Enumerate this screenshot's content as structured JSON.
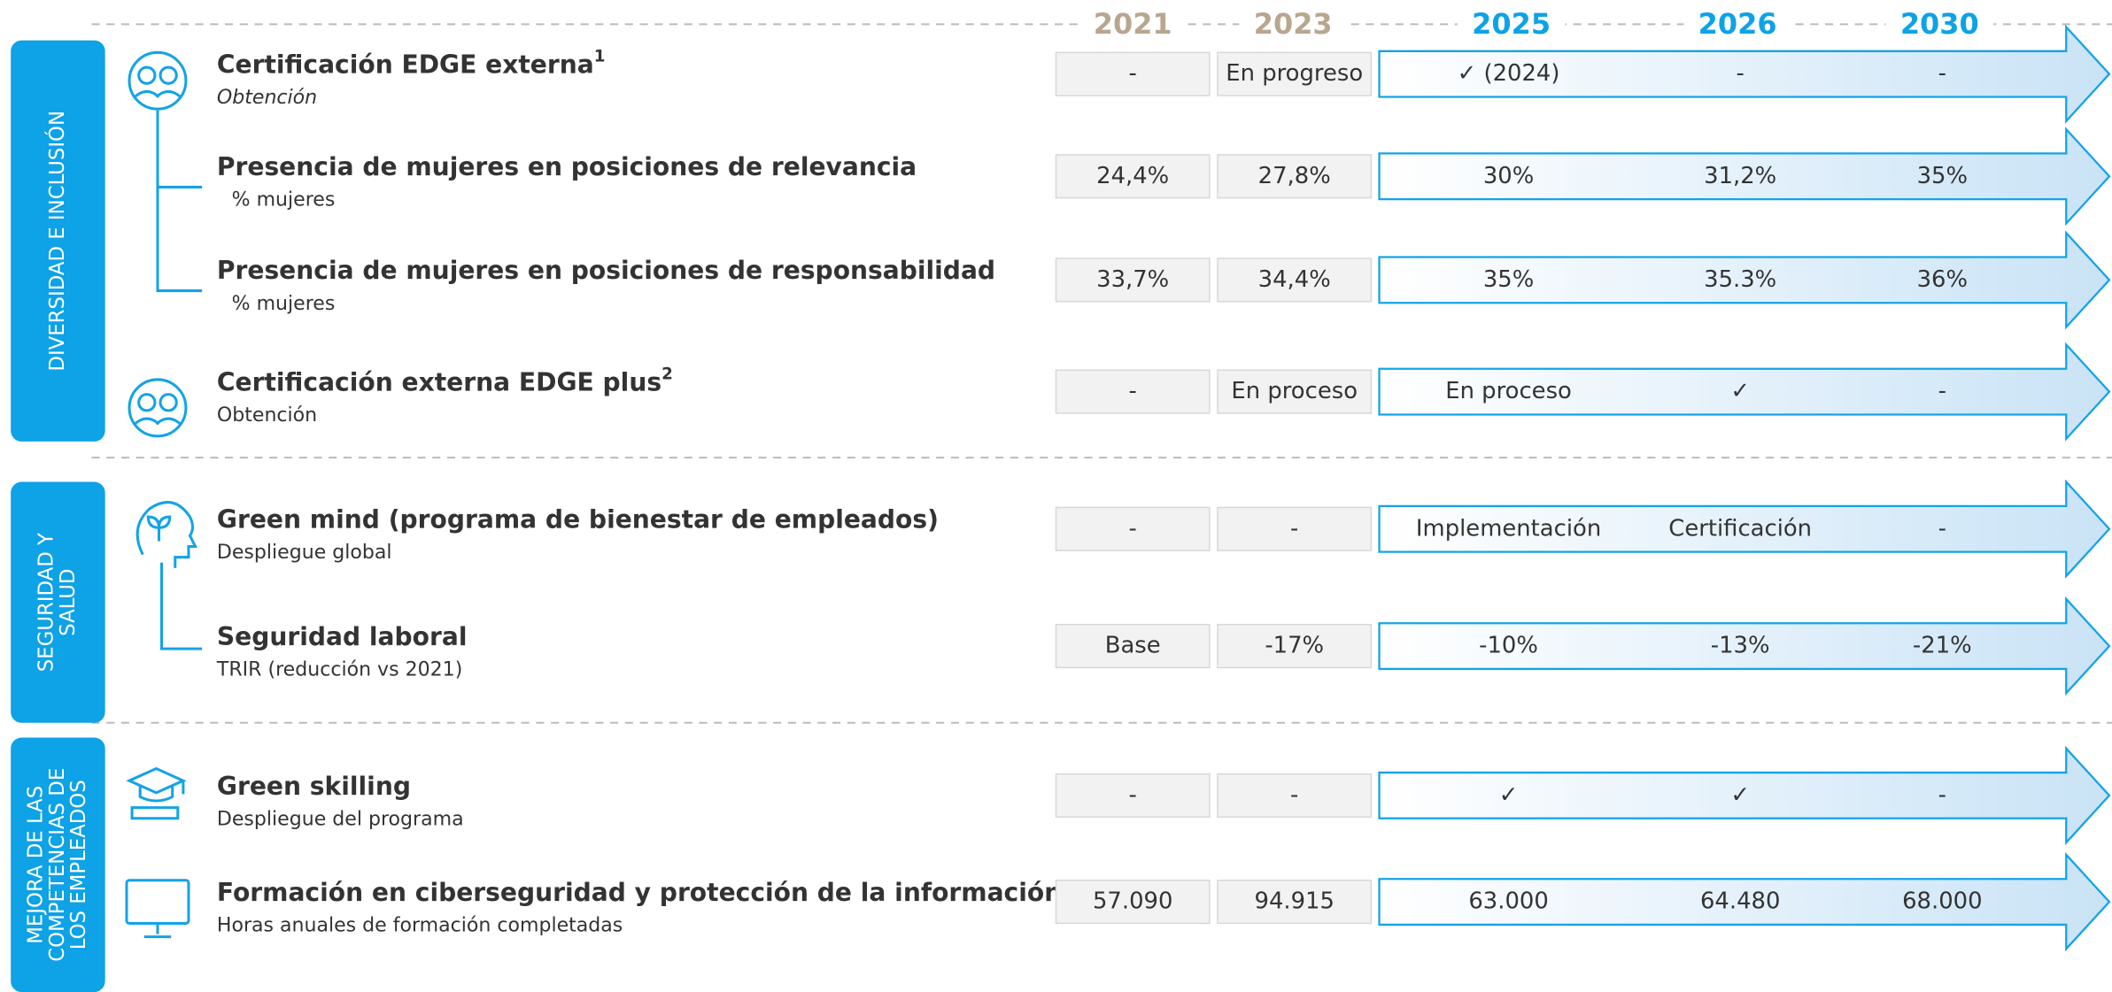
{
  "years": [
    {
      "label": "2021",
      "color": "#b9a68e"
    },
    {
      "label": "2023",
      "color": "#b9a68e"
    },
    {
      "label": "2025",
      "color": "#0ea2e6"
    },
    {
      "label": "2026",
      "color": "#0ea2e6"
    },
    {
      "label": "2030",
      "color": "#0ea2e6"
    }
  ],
  "sections": [
    {
      "label_lines": [
        "DIVERSIDAD E INCLUSIÓN"
      ],
      "rows": [
        {
          "title": "Certificación EDGE externa",
          "sup": "1",
          "subtitle": "Obtención",
          "cells": [
            "-",
            "En progreso",
            "✓ (2024)",
            "-",
            "-"
          ]
        },
        {
          "title": "Presencia de mujeres en posiciones de relevancia",
          "subtitle": "% mujeres",
          "cells": [
            "24,4%",
            "27,8%",
            "30%",
            "31,2%",
            "35%"
          ]
        },
        {
          "title": "Presencia de mujeres en posiciones de responsabilidad",
          "subtitle": "% mujeres",
          "cells": [
            "33,7%",
            "34,4%",
            "35%",
            "35.3%",
            "36%"
          ]
        },
        {
          "title": "Certificación externa EDGE plus",
          "sup": "2",
          "subtitle": "Obtención",
          "cells": [
            "-",
            "En proceso",
            "En proceso",
            "✓",
            "-"
          ]
        }
      ]
    },
    {
      "label_lines": [
        "SEGURIDAD Y",
        "SALUD"
      ],
      "rows": [
        {
          "title": "Green mind (programa de bienestar de empleados)",
          "subtitle": "Despliegue global",
          "cells": [
            "-",
            "-",
            "Implementación",
            "Certificación",
            "-"
          ]
        },
        {
          "title": "Seguridad laboral",
          "subtitle": "TRIR (reducción vs 2021)",
          "cells": [
            "Base",
            "-17%",
            "-10%",
            "-13%",
            "-21%"
          ]
        }
      ]
    },
    {
      "label_lines": [
        "MEJORA DE LAS",
        "COMPETENCIAS DE",
        "LOS EMPLEADOS"
      ],
      "rows": [
        {
          "title": "Green skilling",
          "subtitle": "Despliegue del programa",
          "cells": [
            "-",
            "-",
            "✓",
            "✓",
            "-"
          ]
        },
        {
          "title": "Formación en ciberseguridad y protección de la información",
          "subtitle": "Horas anuales de formación completadas",
          "cells": [
            "57.090",
            "94.915",
            "63.000",
            "64.480",
            "68.000"
          ]
        }
      ]
    }
  ]
}
